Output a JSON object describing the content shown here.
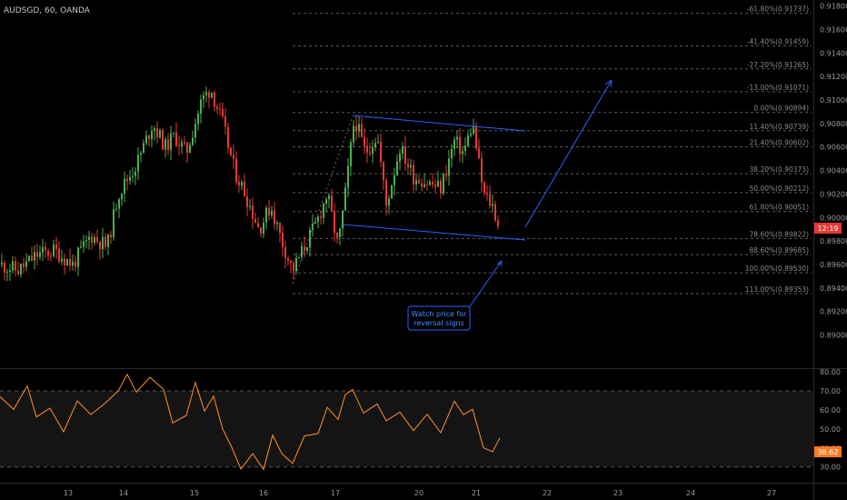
{
  "header": {
    "symbol_label": "AUDSGD, 60, OANDA"
  },
  "colors": {
    "up": "#4caf50",
    "down": "#e53935",
    "fib_text": "#8a8a8a",
    "axis_text": "#9a9a9a",
    "trend": "#2962ff",
    "rsi": "#ff8f2a",
    "price_tag": "#e53935",
    "rsi_tag": "#ff7a20"
  },
  "price_axis": {
    "labels": [
      "0.91800",
      "0.91600",
      "0.91400",
      "0.91200",
      "0.91000",
      "0.90800",
      "0.90600",
      "0.90400",
      "0.90200",
      "0.90000",
      "0.89800",
      "0.89600",
      "0.89400",
      "0.89200",
      "0.89000"
    ],
    "min": 0.8885,
    "max": 0.9182,
    "current_tag": "12:19"
  },
  "rsi_axis": {
    "labels": [
      "80.00",
      "70.00",
      "60.00",
      "50.00",
      "40.00",
      "30.00"
    ],
    "min": 27,
    "max": 81,
    "upper_band": 70,
    "lower_band": 30,
    "current_tag": "38.62"
  },
  "time_axis": {
    "labels": [
      "13",
      "14",
      "15",
      "16",
      "17",
      "20",
      "21",
      "22",
      "23",
      "24",
      "27"
    ]
  },
  "fib_levels": [
    {
      "label": "-61.80%(0.91737)",
      "price": 0.91737
    },
    {
      "label": "-41.40%(0.91459)",
      "price": 0.91459
    },
    {
      "label": "-27.20%(0.91265)",
      "price": 0.91265
    },
    {
      "label": "-13.00%(0.91071)",
      "price": 0.91071
    },
    {
      "label": "0.00%(0.90894)",
      "price": 0.90894
    },
    {
      "label": "11.40%(0.90739)",
      "price": 0.90739
    },
    {
      "label": "21.40%(0.90602)",
      "price": 0.90602
    },
    {
      "label": "38.20%(0.90373)",
      "price": 0.90373
    },
    {
      "label": "50.00%(0.90212)",
      "price": 0.90212
    },
    {
      "label": "61.80%(0.90051)",
      "price": 0.90051
    },
    {
      "label": "78.60%(0.89822)",
      "price": 0.89822
    },
    {
      "label": "88.60%(0.89685)",
      "price": 0.89685
    },
    {
      "label": "100.00%(0.89530)",
      "price": 0.8953
    },
    {
      "label": "113.00%(0.89353)",
      "price": 0.89353
    }
  ],
  "annotation": {
    "line1": "Watch price for",
    "line2": "reversal signs"
  }
}
